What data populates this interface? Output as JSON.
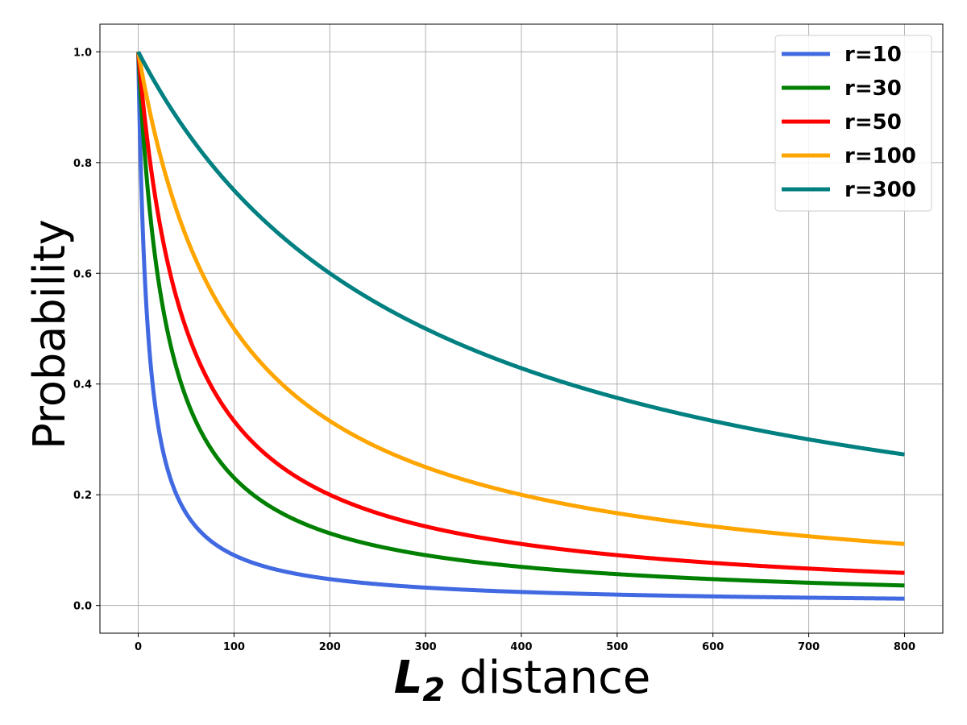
{
  "chart_data": {
    "type": "line",
    "xlabel_symbol": "L",
    "xlabel_subscript": "2",
    "xlabel_text": " distance",
    "ylabel": "Probability",
    "xlim": [
      -40,
      840
    ],
    "ylim": [
      -0.05,
      1.05
    ],
    "x_ticks": [
      0,
      100,
      200,
      300,
      400,
      500,
      600,
      700,
      800
    ],
    "y_ticks": [
      0.0,
      0.2,
      0.4,
      0.6,
      0.8,
      1.0
    ],
    "y_tick_labels": [
      "0.0",
      "0.2",
      "0.4",
      "0.6",
      "0.8",
      "1.0"
    ],
    "grid": true,
    "legend_position": "top-right",
    "x_range": [
      0,
      800
    ],
    "formula": "y = r / (r + x)",
    "series": [
      {
        "name": "r=10",
        "r": 10,
        "color": "#4169E1"
      },
      {
        "name": "r=30",
        "r": 30,
        "color": "#008000"
      },
      {
        "name": "r=50",
        "r": 50,
        "color": "#FF0000"
      },
      {
        "name": "r=100",
        "r": 100,
        "color": "#FFA500"
      },
      {
        "name": "r=300",
        "r": 300,
        "color": "#008080"
      }
    ],
    "sample_values": {
      "x": [
        0,
        100,
        200,
        400,
        800
      ],
      "r=10": [
        1.0,
        0.091,
        0.048,
        0.024,
        0.012
      ],
      "r=30": [
        1.0,
        0.231,
        0.13,
        0.07,
        0.036
      ],
      "r=50": [
        1.0,
        0.333,
        0.2,
        0.111,
        0.059
      ],
      "r=100": [
        1.0,
        0.5,
        0.333,
        0.2,
        0.111
      ],
      "r=300": [
        1.0,
        0.75,
        0.6,
        0.429,
        0.273
      ]
    }
  }
}
